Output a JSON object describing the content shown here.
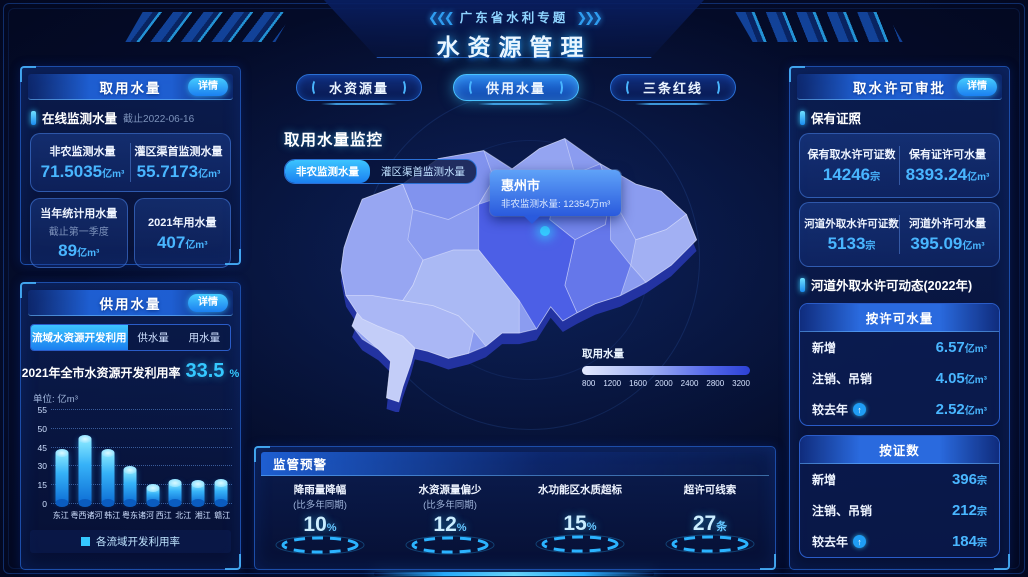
{
  "header": {
    "subtitle": "广东省水利专题",
    "title": "水资源管理"
  },
  "colors": {
    "accent_cyan": "#35c8ff",
    "value_blue": "#49b6ff",
    "panel_border": "#1c4da8",
    "map_light": "#c3cdf8",
    "map_dark_cell": "#4c5fe6",
    "bar_top": "#8ae9ff",
    "bar_bottom": "#0e6fd6"
  },
  "left": {
    "intake": {
      "title": "取用水量",
      "detail": "详情",
      "online": {
        "label": "在线监测水量",
        "asof": "截止2022-06-16",
        "stats": [
          {
            "label": "非农监测水量",
            "value": "71.5035",
            "unit": "亿m³"
          },
          {
            "label": "灌区渠首监测水量",
            "value": "55.7173",
            "unit": "亿m³"
          }
        ]
      },
      "cards": [
        {
          "label": "当年统计用水量",
          "note": "截止第一季度",
          "value": "89",
          "unit": "亿m³"
        },
        {
          "label": "2021年用水量",
          "value": "407",
          "unit": "亿m³"
        }
      ]
    },
    "supply": {
      "title": "供用水量",
      "detail": "详情",
      "tabs": [
        {
          "label": "流域水资源开发利用",
          "active": true
        },
        {
          "label": "供水量",
          "active": false
        },
        {
          "label": "用水量",
          "active": false
        }
      ],
      "rate_label": "2021年全市水资源开发利用率",
      "rate_value": "33.5",
      "rate_unit": "%",
      "unit_label": "单位: 亿m³",
      "legend": "各流域开发利用率"
    }
  },
  "chart_data": {
    "type": "bar",
    "title": "各流域开发利用率",
    "xlabel": "",
    "ylabel": "单位: 亿m³",
    "categories": [
      "东江",
      "粤西诸河",
      "韩江",
      "粤东诸河",
      "西江",
      "北江",
      "湘江",
      "赣江"
    ],
    "values": [
      40,
      47,
      40,
      26,
      12,
      16,
      15,
      16
    ],
    "heights_pct": [
      53,
      68,
      53,
      35,
      16,
      21,
      20,
      21
    ],
    "ytick_labels_top_down": [
      "55",
      "50",
      "45",
      "30",
      "15",
      "0"
    ],
    "grid": "dotted",
    "legend_position": "bottom"
  },
  "center": {
    "tabs": [
      {
        "label": "水资源量",
        "active": false
      },
      {
        "label": "供用水量",
        "active": true
      },
      {
        "label": "三条红线",
        "active": false
      }
    ],
    "monitor": {
      "title": "取用水量监控",
      "toggles": [
        {
          "label": "非农监测水量",
          "active": true
        },
        {
          "label": "灌区渠首监测水量",
          "active": false
        }
      ]
    },
    "tooltip": {
      "city": "惠州市",
      "label": "非农监测水量: ",
      "value": "12354万m³"
    },
    "map_legend": {
      "label": "取用水量",
      "ticks": [
        "800",
        "1200",
        "1600",
        "2000",
        "2400",
        "2800",
        "3200"
      ]
    }
  },
  "alerts": {
    "title": "监管预警",
    "items": [
      {
        "label": "降雨量降幅",
        "sub": "(比多年同期)",
        "value": "10",
        "unit": "%"
      },
      {
        "label": "水资源量偏少",
        "sub": "(比多年同期)",
        "value": "12",
        "unit": "%"
      },
      {
        "label": "水功能区水质超标",
        "value": "15",
        "unit": "%"
      },
      {
        "label": "超许可线索",
        "value": "27",
        "unit": "条"
      }
    ]
  },
  "right": {
    "title": "取水许可审批",
    "detail": "详情",
    "license_section": "保有证照",
    "cards": [
      [
        {
          "label": "保有取水许可证数",
          "value": "14246",
          "unit": "宗"
        },
        {
          "label": "保有证许可水量",
          "value": "8393.24",
          "unit": "亿m³"
        }
      ],
      [
        {
          "label": "河道外取水许可证数",
          "value": "5133",
          "unit": "宗"
        },
        {
          "label": "河道外许可水量",
          "value": "395.09",
          "unit": "亿m³"
        }
      ]
    ],
    "dynamic_section": "河道外取水许可动态(2022年)",
    "sub_panels": [
      {
        "title": "按许可水量",
        "rows": [
          {
            "label": "新增",
            "value": "6.57",
            "unit": "亿m³"
          },
          {
            "label": "注销、吊销",
            "value": "4.05",
            "unit": "亿m³"
          },
          {
            "label": "较去年",
            "up": true,
            "value": "2.52",
            "unit": "亿m³"
          }
        ]
      },
      {
        "title": "按证数",
        "rows": [
          {
            "label": "新增",
            "value": "396",
            "unit": "宗"
          },
          {
            "label": "注销、吊销",
            "value": "212",
            "unit": "宗"
          },
          {
            "label": "较去年",
            "up": true,
            "value": "184",
            "unit": "宗"
          }
        ]
      }
    ]
  }
}
